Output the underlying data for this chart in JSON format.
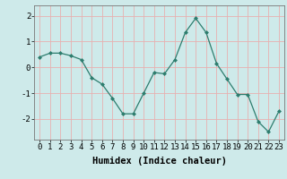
{
  "x": [
    0,
    1,
    2,
    3,
    4,
    5,
    6,
    7,
    8,
    9,
    10,
    11,
    12,
    13,
    14,
    15,
    16,
    17,
    18,
    19,
    20,
    21,
    22,
    23
  ],
  "y": [
    0.4,
    0.55,
    0.55,
    0.45,
    0.3,
    -0.4,
    -0.65,
    -1.2,
    -1.8,
    -1.8,
    -1.0,
    -0.2,
    -0.25,
    0.3,
    1.35,
    1.9,
    1.35,
    0.15,
    -0.45,
    -1.05,
    -1.05,
    -2.1,
    -2.5,
    -1.7
  ],
  "line_color": "#2d7d6e",
  "marker": "D",
  "marker_size": 2.0,
  "bg_color": "#ceeaea",
  "grid_color": "#e8b0b0",
  "xlabel": "Humidex (Indice chaleur)",
  "ylim": [
    -2.8,
    2.4
  ],
  "yticks": [
    -2,
    -1,
    0,
    1,
    2
  ],
  "xlabel_fontsize": 7.5,
  "tick_fontsize": 6.5,
  "linewidth": 0.9
}
